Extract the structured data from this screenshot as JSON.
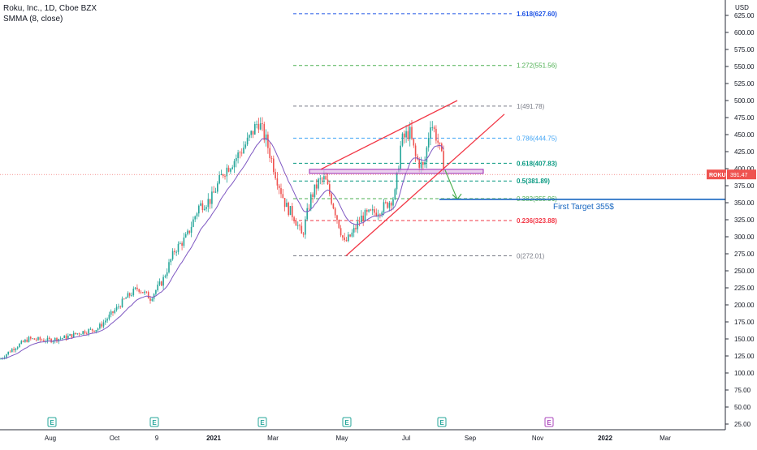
{
  "header": {
    "symbol_line": "Roku, Inc., 1D, Cboe BZX",
    "indicator_line": "SMMA (8, close)"
  },
  "colors": {
    "up": "#26a69a",
    "down": "#ef5350",
    "smma": "#7e57c2",
    "fib_blue": "#1e53e5",
    "fib_green": "#4caf50",
    "fib_red": "#f23645",
    "fib_gray": "#787b86",
    "fib_light_blue": "#42a5f5",
    "fib_teal": "#089981",
    "target_line": "#1565c0",
    "zone_fill": "#e1bee7",
    "zone_stroke": "#9c27b0",
    "wedge": "#f23645",
    "arrow": "#4caf50"
  },
  "axis": {
    "currency": "USD",
    "ticker_badge": "ROKU",
    "last_price": "391.47",
    "y_ticks": [
      "625.00",
      "600.00",
      "575.00",
      "550.00",
      "525.00",
      "500.00",
      "475.00",
      "450.00",
      "425.00",
      "400.00",
      "375.00",
      "350.00",
      "325.00",
      "300.00",
      "275.00",
      "250.00",
      "225.00",
      "200.00",
      "175.00",
      "150.00",
      "125.00",
      "100.00",
      "75.00",
      "50.00",
      "25.00"
    ],
    "x_ticks": [
      "Aug",
      "Oct",
      "9",
      "2021",
      "Mar",
      "May",
      "Jul",
      "Sep",
      "Nov",
      "2022",
      "Mar"
    ]
  },
  "earnings_marker": "E",
  "annotation": "First Target 355$",
  "chart_data": {
    "type": "line",
    "title": "Roku, Inc., 1D, Cboe BZX",
    "ylim": [
      25,
      640
    ],
    "y_scale": "linear",
    "x": [
      "2020-06",
      "2020-07",
      "2020-08",
      "2020-09",
      "2020-10",
      "2020-11",
      "2020-12",
      "2021-01",
      "2021-02",
      "2021-03",
      "2021-04",
      "2021-05",
      "2021-06",
      "2021-07",
      "2021-08"
    ],
    "series": [
      {
        "values": [
          115,
          140,
          150,
          165,
          205,
          245,
          330,
          410,
          470,
          345,
          360,
          295,
          340,
          460,
          410
        ]
      }
    ],
    "fib_levels": [
      {
        "ratio": "1.618",
        "price": 627.6,
        "label": "1.618(627.60)"
      },
      {
        "ratio": "1.272",
        "price": 551.56,
        "label": "1.272(551.56)"
      },
      {
        "ratio": "1",
        "price": 491.78,
        "label": "1(491.78)"
      },
      {
        "ratio": "0.786",
        "price": 444.75,
        "label": "0.786(444.75)"
      },
      {
        "ratio": "0.618",
        "price": 407.83,
        "label": "0.618(407.83)"
      },
      {
        "ratio": "0.5",
        "price": 381.89,
        "label": "0.5(381.89)"
      },
      {
        "ratio": "0.382",
        "price": 355.96,
        "label": "0.382(355.96)"
      },
      {
        "ratio": "0.236",
        "price": 323.88,
        "label": "0.236(323.88)"
      },
      {
        "ratio": "0",
        "price": 272.01,
        "label": "0(272.01)"
      }
    ],
    "target_price": 355,
    "last_price": 391.47
  }
}
